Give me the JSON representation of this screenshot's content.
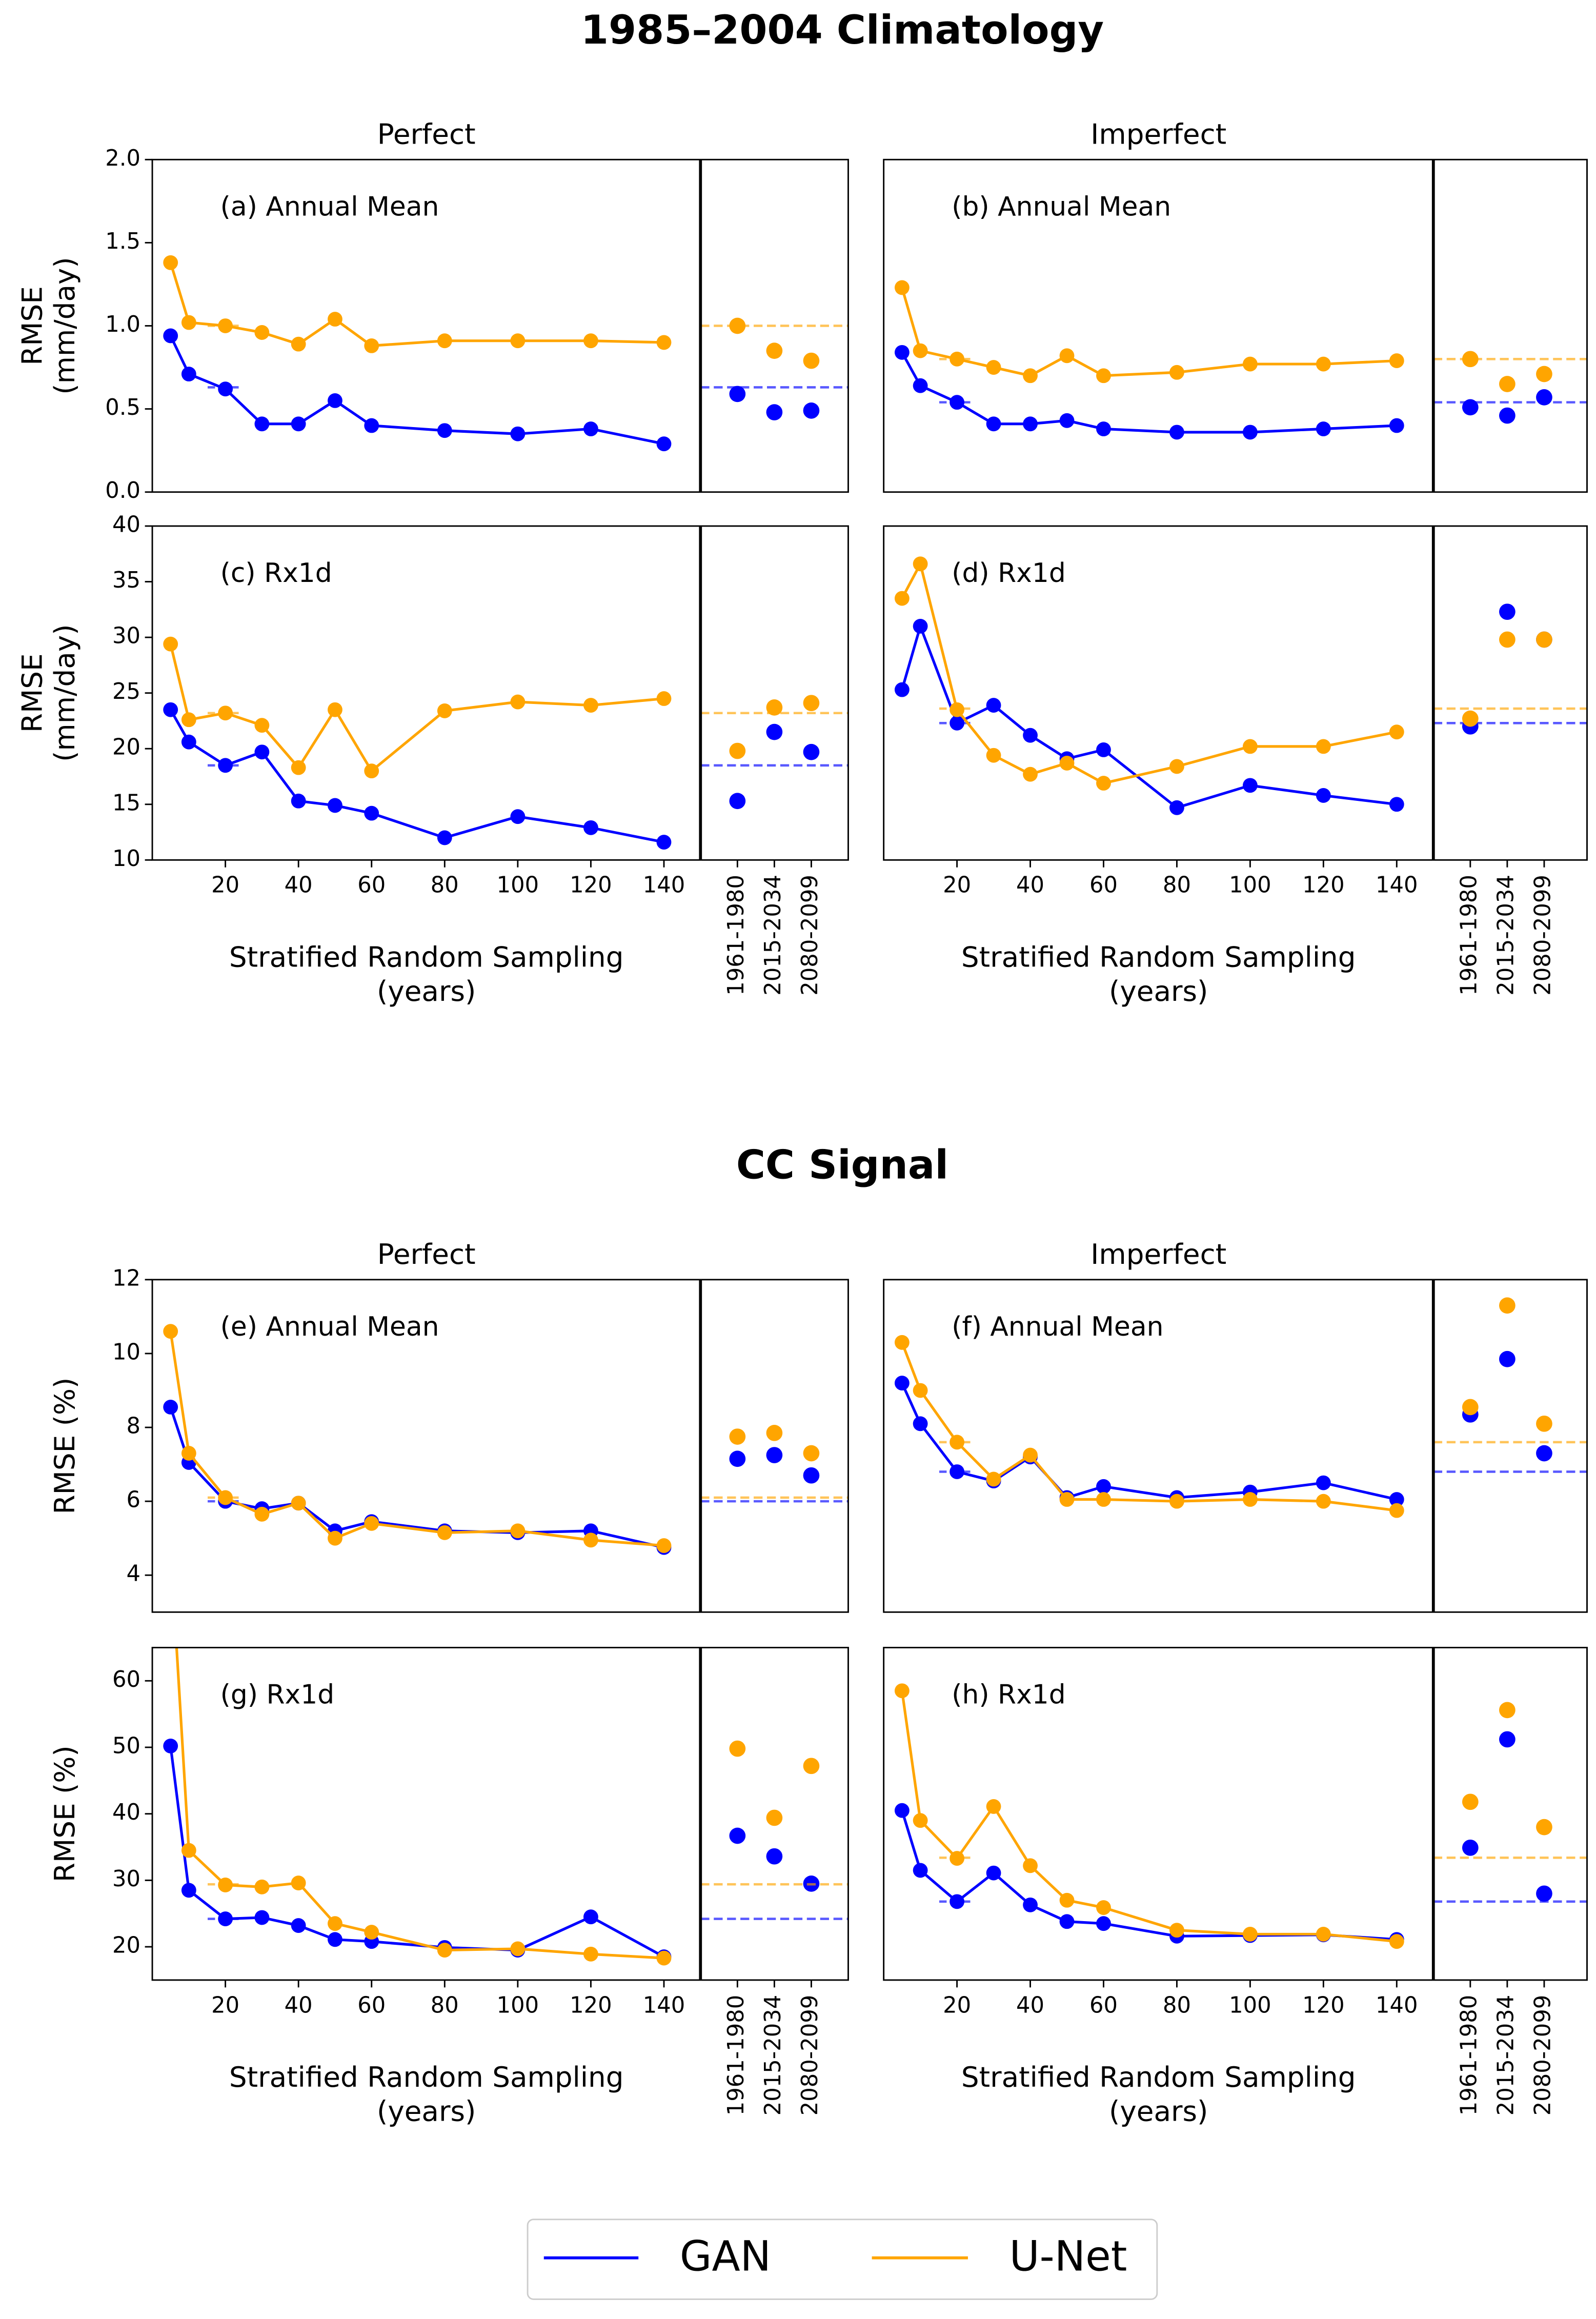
{
  "sections": [
    {
      "title": "1985–2004 Climatology",
      "column_titles": [
        "Perfect",
        "Imperfect"
      ]
    },
    {
      "title": "CC Signal",
      "column_titles": [
        "Perfect",
        "Imperfect"
      ]
    }
  ],
  "chart_data": [
    {
      "type": "line",
      "label": "(a) Annual Mean",
      "ylabel": [
        "RMSE",
        "(mm/day)"
      ],
      "x": [
        5,
        10,
        20,
        30,
        40,
        50,
        60,
        80,
        100,
        120,
        140
      ],
      "xlim": [
        0,
        150
      ],
      "ylim": [
        0,
        2
      ],
      "yticks": [
        {
          "value": 0,
          "label": "0.0"
        },
        0.5,
        {
          "value": 1,
          "label": "1.0"
        },
        1.5,
        {
          "value": 2,
          "label": "2.0"
        }
      ],
      "series": [
        {
          "name": "GAN",
          "color": "#0000ff",
          "values": [
            0.94,
            0.71,
            0.62,
            0.41,
            0.41,
            0.55,
            0.4,
            0.37,
            0.35,
            0.38,
            0.29
          ],
          "side_values": [
            0.59,
            0.48,
            0.49
          ],
          "reference": 0.63
        },
        {
          "name": "U-Net",
          "color": "#ffa500",
          "values": [
            1.38,
            1.02,
            1.0,
            0.96,
            0.89,
            1.04,
            0.88,
            0.91,
            0.91,
            0.91,
            0.9
          ],
          "side_values": [
            1.0,
            0.85,
            0.79
          ],
          "reference": 1.0
        }
      ]
    },
    {
      "type": "line",
      "label": "(b) Annual Mean",
      "x": [
        5,
        10,
        20,
        30,
        40,
        50,
        60,
        80,
        100,
        120,
        140
      ],
      "xlim": [
        0,
        150
      ],
      "ylim": [
        0,
        2
      ],
      "series": [
        {
          "name": "GAN",
          "color": "#0000ff",
          "values": [
            0.84,
            0.64,
            0.54,
            0.41,
            0.41,
            0.43,
            0.38,
            0.36,
            0.36,
            0.38,
            0.4
          ],
          "side_values": [
            0.51,
            0.46,
            0.57
          ],
          "reference": 0.54
        },
        {
          "name": "U-Net",
          "color": "#ffa500",
          "values": [
            1.23,
            0.85,
            0.8,
            0.75,
            0.7,
            0.82,
            0.7,
            0.72,
            0.77,
            0.77,
            0.79
          ],
          "side_values": [
            0.8,
            0.65,
            0.71
          ],
          "reference": 0.8
        }
      ]
    },
    {
      "type": "line",
      "label": "(c) Rx1d",
      "ylabel": [
        "RMSE",
        "(mm/day)"
      ],
      "xlabel": [
        "Stratified Random Sampling",
        "(years)"
      ],
      "side_categories": [
        "1961-1980",
        "2015-2034",
        "2080-2099"
      ],
      "x": [
        5,
        10,
        20,
        30,
        40,
        50,
        60,
        80,
        100,
        120,
        140
      ],
      "xlim": [
        0,
        150
      ],
      "xticks": [
        20,
        40,
        60,
        80,
        100,
        120,
        140
      ],
      "ylim": [
        10,
        40
      ],
      "yticks": [
        10,
        15,
        20,
        25,
        30,
        35,
        40
      ],
      "series": [
        {
          "name": "GAN",
          "color": "#0000ff",
          "values": [
            23.5,
            20.6,
            18.5,
            19.7,
            15.3,
            14.9,
            14.2,
            12.0,
            13.9,
            12.9,
            11.6
          ],
          "side_values": [
            15.3,
            21.5,
            19.7
          ],
          "reference": 18.5
        },
        {
          "name": "U-Net",
          "color": "#ffa500",
          "values": [
            29.4,
            22.6,
            23.2,
            22.1,
            18.3,
            23.5,
            18.0,
            23.4,
            24.2,
            23.9,
            24.5
          ],
          "side_values": [
            19.8,
            23.7,
            24.1
          ],
          "reference": 23.2
        }
      ]
    },
    {
      "type": "line",
      "label": "(d) Rx1d",
      "xlabel": [
        "Stratified Random Sampling",
        "(years)"
      ],
      "side_categories": [
        "1961-1980",
        "2015-2034",
        "2080-2099"
      ],
      "x": [
        5,
        10,
        20,
        30,
        40,
        50,
        60,
        80,
        100,
        120,
        140
      ],
      "xlim": [
        0,
        150
      ],
      "xticks": [
        20,
        40,
        60,
        80,
        100,
        120,
        140
      ],
      "ylim": [
        10,
        40
      ],
      "series": [
        {
          "name": "GAN",
          "color": "#0000ff",
          "values": [
            25.3,
            31.0,
            22.3,
            23.9,
            21.2,
            19.1,
            19.9,
            14.7,
            16.7,
            15.8,
            15.0
          ],
          "side_values": [
            22.0,
            32.3,
            29.8
          ],
          "reference": 22.3
        },
        {
          "name": "U-Net",
          "color": "#ffa500",
          "values": [
            33.5,
            36.6,
            23.5,
            19.4,
            17.7,
            18.7,
            16.9,
            18.4,
            20.2,
            20.2,
            21.5
          ],
          "side_values": [
            22.7,
            29.8,
            29.8
          ],
          "reference": 23.6
        }
      ]
    },
    {
      "type": "line",
      "label": "(e) Annual Mean",
      "ylabel": [
        "RMSE (%)"
      ],
      "x": [
        5,
        10,
        20,
        30,
        40,
        50,
        60,
        80,
        100,
        120,
        140
      ],
      "xlim": [
        0,
        150
      ],
      "ylim": [
        3,
        12
      ],
      "yticks": [
        4,
        6,
        8,
        10,
        12
      ],
      "series": [
        {
          "name": "GAN",
          "color": "#0000ff",
          "values": [
            8.55,
            7.05,
            6.0,
            5.8,
            5.95,
            5.2,
            5.45,
            5.2,
            5.15,
            5.2,
            4.75
          ],
          "side_values": [
            7.15,
            7.25,
            6.7
          ],
          "reference": 6.0
        },
        {
          "name": "U-Net",
          "color": "#ffa500",
          "values": [
            10.6,
            7.3,
            6.1,
            5.65,
            5.95,
            5.0,
            5.4,
            5.15,
            5.2,
            4.95,
            4.8
          ],
          "side_values": [
            7.75,
            7.85,
            7.3
          ],
          "reference": 6.1
        }
      ]
    },
    {
      "type": "line",
      "label": "(f) Annual Mean",
      "x": [
        5,
        10,
        20,
        30,
        40,
        50,
        60,
        80,
        100,
        120,
        140
      ],
      "xlim": [
        0,
        150
      ],
      "ylim": [
        3,
        12
      ],
      "series": [
        {
          "name": "GAN",
          "color": "#0000ff",
          "values": [
            9.2,
            8.1,
            6.8,
            6.55,
            7.2,
            6.1,
            6.4,
            6.1,
            6.25,
            6.5,
            6.05
          ],
          "side_values": [
            8.35,
            9.85,
            7.3
          ],
          "reference": 6.8
        },
        {
          "name": "U-Net",
          "color": "#ffa500",
          "values": [
            10.3,
            9.0,
            7.6,
            6.6,
            7.25,
            6.05,
            6.05,
            6.0,
            6.05,
            6.0,
            5.75
          ],
          "side_values": [
            8.55,
            11.3,
            8.1
          ],
          "reference": 7.6
        }
      ]
    },
    {
      "type": "line",
      "label": "(g) Rx1d",
      "ylabel": [
        "RMSE (%)"
      ],
      "xlabel": [
        "Stratified Random Sampling",
        "(years)"
      ],
      "side_categories": [
        "1961-1980",
        "2015-2034",
        "2080-2099"
      ],
      "x": [
        5,
        10,
        20,
        30,
        40,
        50,
        60,
        80,
        100,
        120,
        140
      ],
      "xlim": [
        0,
        150
      ],
      "xticks": [
        20,
        40,
        60,
        80,
        100,
        120,
        140
      ],
      "ylim": [
        15,
        65
      ],
      "yticks": [
        20,
        30,
        40,
        50,
        60
      ],
      "series": [
        {
          "name": "GAN",
          "color": "#0000ff",
          "values": [
            50.2,
            28.5,
            24.2,
            24.4,
            23.2,
            21.1,
            20.8,
            19.9,
            19.5,
            24.5,
            18.5
          ],
          "side_values": [
            36.7,
            33.6,
            29.5
          ],
          "reference": 24.2
        },
        {
          "name": "U-Net",
          "color": "#ffa500",
          "values": [
            80,
            34.5,
            29.3,
            29.0,
            29.6,
            23.5,
            22.2,
            19.5,
            19.7,
            18.9,
            18.3
          ],
          "side_values": [
            49.8,
            39.4,
            47.2
          ],
          "reference": 29.4
        }
      ]
    },
    {
      "type": "line",
      "label": "(h) Rx1d",
      "xlabel": [
        "Stratified Random Sampling",
        "(years)"
      ],
      "side_categories": [
        "1961-1980",
        "2015-2034",
        "2080-2099"
      ],
      "x": [
        5,
        10,
        20,
        30,
        40,
        50,
        60,
        80,
        100,
        120,
        140
      ],
      "xlim": [
        0,
        150
      ],
      "xticks": [
        20,
        40,
        60,
        80,
        100,
        120,
        140
      ],
      "ylim": [
        15,
        65
      ],
      "series": [
        {
          "name": "GAN",
          "color": "#0000ff",
          "values": [
            40.5,
            31.5,
            26.8,
            31.1,
            26.3,
            23.8,
            23.5,
            21.6,
            21.7,
            21.8,
            21.1
          ],
          "side_values": [
            34.9,
            51.2,
            28.0
          ],
          "reference": 26.8
        },
        {
          "name": "U-Net",
          "color": "#ffa500",
          "values": [
            58.5,
            39.0,
            33.3,
            41.1,
            32.2,
            27.0,
            25.9,
            22.5,
            21.9,
            21.9,
            20.8
          ],
          "side_values": [
            41.8,
            55.6,
            38.0
          ],
          "reference": 33.4
        }
      ]
    }
  ]
}
